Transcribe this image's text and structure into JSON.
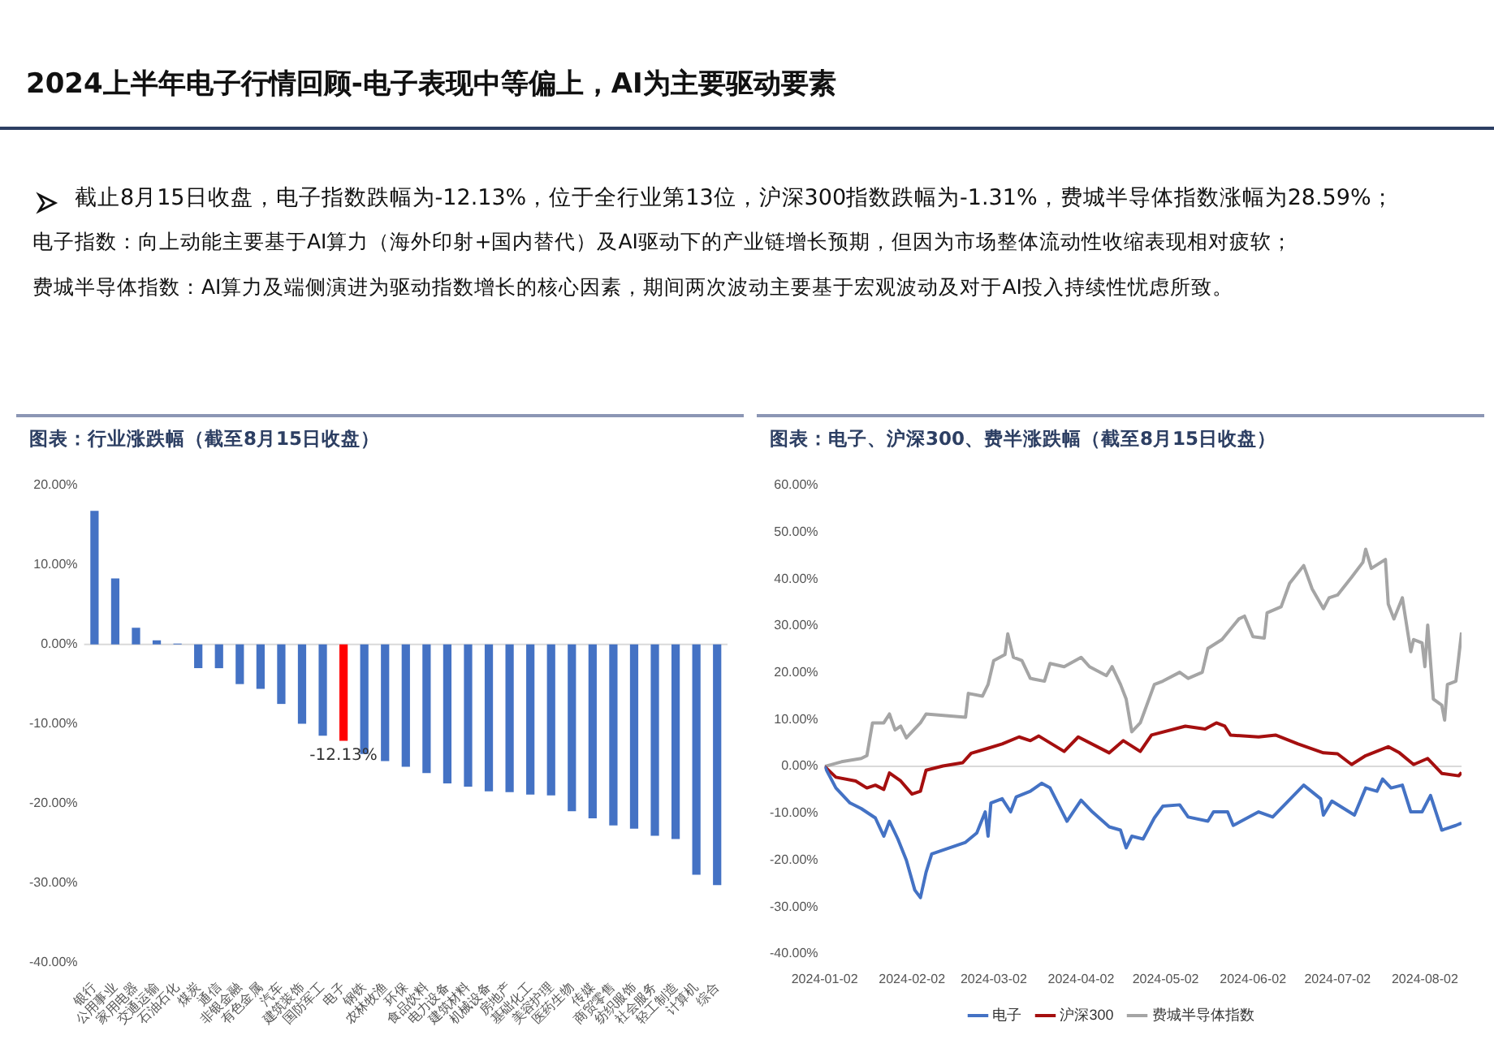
{
  "chart_data": [
    {
      "type": "other",
      "title": "2024上半年电子行情回顾-电子表现中等偏上，AI为主要驱动要素",
      "annotations": [
        "截止8月15日收盘，电子指数跌幅为-12.13%，位于全行业第13位，沪深300指数跌幅为-1.31%，费城半导体指数涨幅为28.59%；",
        "电子指数：向上动能主要基于AI算力（海外印射+国内替代）及AI驱动下的产业链增长预期，但因为市场整体流动性收缩表现相对疲软；",
        "费城半导体指数：AI算力及端侧演进为驱动指数增长的核心因素，期间两次波动主要基于宏观波动及对于AI投入持续性忧虑所致。"
      ]
    },
    {
      "type": "bar",
      "title": "图表：行业涨跌幅（截至8月15日收盘）",
      "categories": [
        "银行",
        "公用事业",
        "家用电器",
        "交通运输",
        "石油石化",
        "煤炭",
        "通信",
        "非银金融",
        "有色金属",
        "汽车",
        "建筑装饰",
        "国防军工",
        "电子",
        "钢铁",
        "农林牧渔",
        "环保",
        "食品饮料",
        "电力设备",
        "建筑材料",
        "机械设备",
        "房地产",
        "基础化工",
        "美容护理",
        "医药生物",
        "传媒",
        "商贸零售",
        "纺织服饰",
        "社会服务",
        "轻工制造",
        "计算机",
        "综合"
      ],
      "values": [
        16.8,
        8.3,
        2.1,
        0.5,
        0.1,
        -3.0,
        -3.0,
        -5.0,
        -5.6,
        -7.5,
        -10.0,
        -11.5,
        -12.13,
        -13.8,
        -14.7,
        -15.4,
        -16.2,
        -17.5,
        -17.9,
        -18.5,
        -18.6,
        -18.9,
        -19.0,
        -21.0,
        -21.9,
        -22.8,
        -23.2,
        -24.1,
        -24.5,
        -29.0,
        -30.3
      ],
      "colors": [
        "#4472c4",
        "#4472c4",
        "#4472c4",
        "#4472c4",
        "#4472c4",
        "#4472c4",
        "#4472c4",
        "#4472c4",
        "#4472c4",
        "#4472c4",
        "#4472c4",
        "#4472c4",
        "#ff0000",
        "#4472c4",
        "#4472c4",
        "#4472c4",
        "#4472c4",
        "#4472c4",
        "#4472c4",
        "#4472c4",
        "#4472c4",
        "#4472c4",
        "#4472c4",
        "#4472c4",
        "#4472c4",
        "#4472c4",
        "#4472c4",
        "#4472c4",
        "#4472c4",
        "#4472c4",
        "#4472c4"
      ],
      "value_labels": [
        null,
        null,
        null,
        null,
        null,
        null,
        null,
        null,
        null,
        null,
        null,
        null,
        "-12.13%",
        null,
        null,
        null,
        null,
        null,
        null,
        null,
        null,
        null,
        null,
        null,
        null,
        null,
        null,
        null,
        null,
        null,
        null
      ],
      "ylim": [
        -40,
        20
      ],
      "yticks": [
        {
          "value": -40,
          "label": "-40.00%"
        },
        {
          "value": -30,
          "label": "-30.00%"
        },
        {
          "value": -20,
          "label": "-20.00%"
        },
        {
          "value": -10,
          "label": "-10.00%"
        },
        {
          "value": 0,
          "label": "0.00%"
        },
        {
          "value": 10,
          "label": "10.00%"
        },
        {
          "value": 20,
          "label": "20.00%"
        }
      ],
      "ref_lines": [
        {
          "axis": "y",
          "value": 0,
          "color": "#d9d9d9"
        }
      ],
      "grid": false,
      "legend": false
    },
    {
      "type": "line",
      "title": "图表：电子、沪深300、费半涨跌幅（截至8月15日收盘）",
      "series": [
        {
          "name": "电子",
          "color": "#4472c4",
          "x": [
            "2024-01-02",
            "2024-01-06",
            "2024-01-11",
            "2024-01-15",
            "2024-01-20",
            "2024-01-23",
            "2024-01-25",
            "2024-01-28",
            "2024-01-31",
            "2024-02-03",
            "2024-02-05",
            "2024-02-07",
            "2024-02-09",
            "2024-02-21",
            "2024-02-25",
            "2024-02-28",
            "2024-02-29",
            "2024-03-01",
            "2024-03-05",
            "2024-03-08",
            "2024-03-10",
            "2024-03-15",
            "2024-03-19",
            "2024-03-22",
            "2024-03-28",
            "2024-04-02",
            "2024-04-06",
            "2024-04-12",
            "2024-04-16",
            "2024-04-18",
            "2024-04-20",
            "2024-04-24",
            "2024-04-28",
            "2024-05-01",
            "2024-05-07",
            "2024-05-10",
            "2024-05-17",
            "2024-05-19",
            "2024-05-24",
            "2024-05-26",
            "2024-06-04",
            "2024-06-09",
            "2024-06-20",
            "2024-06-26",
            "2024-06-27",
            "2024-06-30",
            "2024-07-08",
            "2024-07-12",
            "2024-07-16",
            "2024-07-18",
            "2024-07-21",
            "2024-07-25",
            "2024-07-28",
            "2024-08-01",
            "2024-08-04",
            "2024-08-08",
            "2024-08-13",
            "2024-08-15"
          ],
          "values": [
            0,
            -4.6,
            -7.8,
            -9,
            -11,
            -14.9,
            -11.7,
            -15.5,
            -20,
            -26.4,
            -28,
            -22.6,
            -18.7,
            -16.2,
            -14.2,
            -9.7,
            -14.9,
            -7.8,
            -6.9,
            -9.7,
            -6.5,
            -5.3,
            -3.6,
            -4.6,
            -11.7,
            -7.2,
            -9.7,
            -12.9,
            -13.6,
            -17.4,
            -14.9,
            -15.5,
            -11,
            -8.5,
            -8.2,
            -10.8,
            -11.7,
            -9.7,
            -9.7,
            -12.6,
            -9.7,
            -10.8,
            -4,
            -6.9,
            -10.4,
            -7.4,
            -10.4,
            -4.6,
            -5.3,
            -2.7,
            -4.6,
            -4,
            -9.7,
            -9.7,
            -6.2,
            -13.6,
            -12.6,
            -12.1
          ]
        },
        {
          "name": "沪深300",
          "color": "#a50f0f",
          "x": [
            "2024-01-02",
            "2024-01-06",
            "2024-01-13",
            "2024-01-17",
            "2024-01-20",
            "2024-01-23",
            "2024-01-25",
            "2024-01-29",
            "2024-02-02",
            "2024-02-05",
            "2024-02-07",
            "2024-02-13",
            "2024-02-20",
            "2024-02-23",
            "2024-02-28",
            "2024-03-05",
            "2024-03-11",
            "2024-03-15",
            "2024-03-18",
            "2024-03-27",
            "2024-04-01",
            "2024-04-12",
            "2024-04-17",
            "2024-04-23",
            "2024-04-27",
            "2024-05-09",
            "2024-05-16",
            "2024-05-20",
            "2024-05-23",
            "2024-05-25",
            "2024-06-04",
            "2024-06-10",
            "2024-06-18",
            "2024-06-27",
            "2024-07-02",
            "2024-07-07",
            "2024-07-12",
            "2024-07-20",
            "2024-07-24",
            "2024-07-29",
            "2024-08-03",
            "2024-08-08",
            "2024-08-14",
            "2024-08-15"
          ],
          "values": [
            0,
            -2.3,
            -3.1,
            -4.6,
            -4,
            -4.9,
            -1.4,
            -3.1,
            -5.9,
            -5.3,
            -0.8,
            0.1,
            0.8,
            2.8,
            3.7,
            4.8,
            6.3,
            5.5,
            6.5,
            3.2,
            6.3,
            2.9,
            5.5,
            3.2,
            6.7,
            8.6,
            8,
            9.3,
            8.6,
            6.7,
            6.3,
            6.7,
            4.8,
            2.9,
            2.7,
            0.4,
            2.3,
            4.2,
            2.9,
            0.4,
            1.7,
            -1.5,
            -2,
            -1.3
          ]
        },
        {
          "name": "费城半导体指数",
          "color": "#a5a5a5",
          "x": [
            "2024-01-02",
            "2024-01-08",
            "2024-01-15",
            "2024-01-17",
            "2024-01-19",
            "2024-01-23",
            "2024-01-25",
            "2024-01-27",
            "2024-01-29",
            "2024-01-31",
            "2024-02-05",
            "2024-02-07",
            "2024-02-21",
            "2024-02-22",
            "2024-02-27",
            "2024-02-29",
            "2024-03-02",
            "2024-03-06",
            "2024-03-07",
            "2024-03-09",
            "2024-03-12",
            "2024-03-15",
            "2024-03-20",
            "2024-03-22",
            "2024-03-27",
            "2024-04-02",
            "2024-04-05",
            "2024-04-11",
            "2024-04-13",
            "2024-04-16",
            "2024-04-18",
            "2024-04-20",
            "2024-04-23",
            "2024-04-28",
            "2024-05-01",
            "2024-05-07",
            "2024-05-10",
            "2024-05-15",
            "2024-05-17",
            "2024-05-22",
            "2024-05-28",
            "2024-05-30",
            "2024-06-02",
            "2024-06-06",
            "2024-06-07",
            "2024-06-12",
            "2024-06-15",
            "2024-06-20",
            "2024-06-23",
            "2024-06-27",
            "2024-06-29",
            "2024-07-02",
            "2024-07-07",
            "2024-07-11",
            "2024-07-12",
            "2024-07-14",
            "2024-07-19",
            "2024-07-20",
            "2024-07-22",
            "2024-07-25",
            "2024-07-28",
            "2024-07-29",
            "2024-08-01",
            "2024-08-02",
            "2024-08-03",
            "2024-08-05",
            "2024-08-08",
            "2024-08-09",
            "2024-08-10",
            "2024-08-13",
            "2024-08-14",
            "2024-08-15"
          ],
          "values": [
            0,
            1,
            1.7,
            2.3,
            9.3,
            9.3,
            11.2,
            7.8,
            8.6,
            6.1,
            9.3,
            11.2,
            10.5,
            15.6,
            15,
            17.5,
            22.6,
            23.9,
            28.3,
            23.3,
            22.6,
            18.8,
            18.2,
            22,
            21.3,
            23.3,
            21.3,
            19.4,
            21.3,
            17.5,
            14.4,
            7.4,
            9.3,
            17.5,
            18.2,
            20.1,
            18.8,
            20.1,
            25.2,
            27.1,
            31.5,
            32.1,
            27.7,
            27.4,
            32.8,
            34.1,
            39.1,
            42.9,
            37.9,
            33.7,
            36,
            36.6,
            40.4,
            43.6,
            46.4,
            42.3,
            44.2,
            34.7,
            31.5,
            36,
            24.5,
            27.1,
            26.4,
            21.3,
            30.2,
            14.4,
            13.1,
            9.9,
            17.5,
            18.2,
            23.3,
            28.6
          ]
        }
      ],
      "xlim": [
        "2024-01-02",
        "2024-08-15"
      ],
      "xticks": [
        "2024-01-02",
        "2024-02-02",
        "2024-03-02",
        "2024-04-02",
        "2024-05-02",
        "2024-06-02",
        "2024-07-02",
        "2024-08-02"
      ],
      "ylim": [
        -40,
        60
      ],
      "yticks": [
        {
          "value": -40,
          "label": "-40.00%"
        },
        {
          "value": -30,
          "label": "-30.00%"
        },
        {
          "value": -20,
          "label": "-20.00%"
        },
        {
          "value": -10,
          "label": "-10.00%"
        },
        {
          "value": 0,
          "label": "0.00%"
        },
        {
          "value": 10,
          "label": "10.00%"
        },
        {
          "value": 20,
          "label": "20.00%"
        },
        {
          "value": 30,
          "label": "30.00%"
        },
        {
          "value": 40,
          "label": "40.00%"
        },
        {
          "value": 50,
          "label": "50.00%"
        },
        {
          "value": 60,
          "label": "60.00%"
        }
      ],
      "ref_lines": [
        {
          "axis": "y",
          "value": 0,
          "color": "#d9d9d9"
        }
      ],
      "grid": false,
      "legend": "bottom",
      "marker": "none",
      "line_style": "solid"
    }
  ]
}
